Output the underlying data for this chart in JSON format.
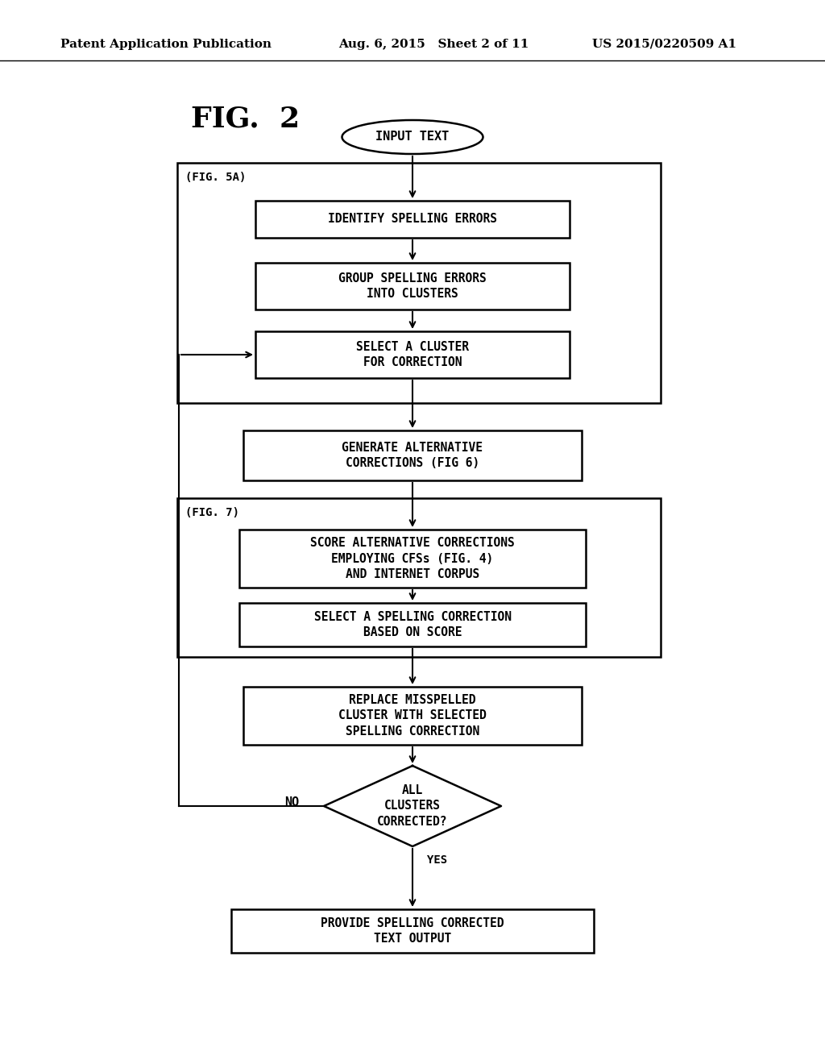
{
  "bg_color": "#ffffff",
  "header_left": "Patent Application Publication",
  "header_mid": "Aug. 6, 2015   Sheet 2 of 11",
  "header_right": "US 2015/0220509 A1",
  "fig_label": "FIG.  2"
}
